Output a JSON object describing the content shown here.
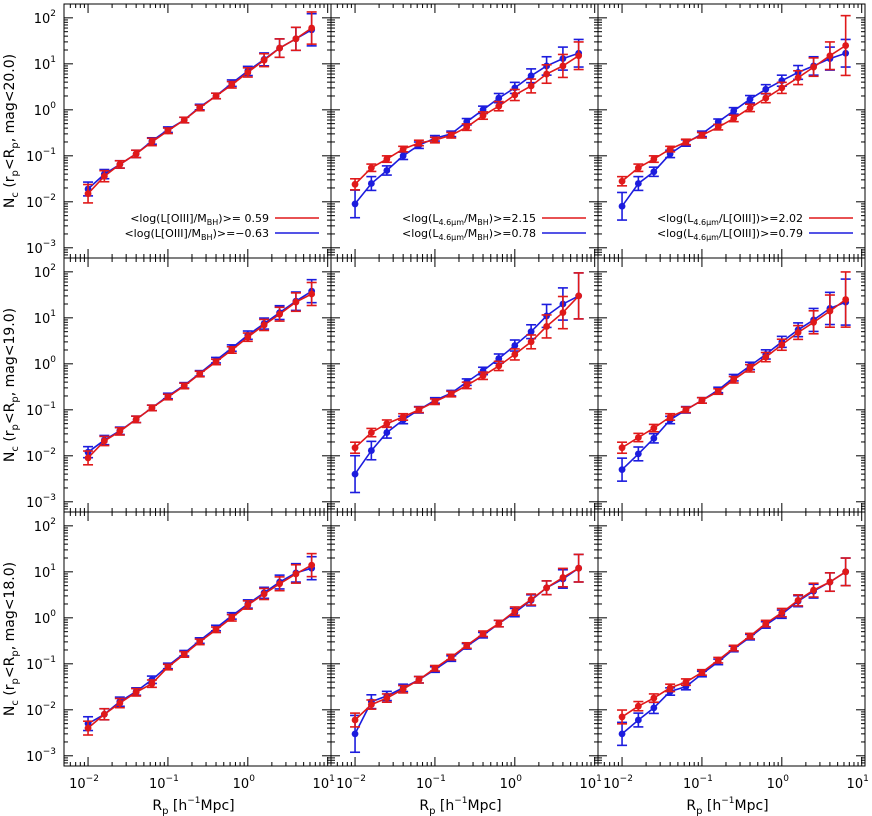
{
  "colors": {
    "red": "#e0191a",
    "blue": "#1c1cde",
    "axis": "#000000"
  },
  "x_axis": {
    "label_main": "R",
    "label_sub": "p",
    "label_rest": "[h",
    "label_sup": "−1",
    "label_end": "Mpc]",
    "tick_labels": [
      {
        "base": "10",
        "exp": "−2"
      },
      {
        "base": "10",
        "exp": "−1"
      },
      {
        "base": "10",
        "exp": "0"
      },
      {
        "base": "10",
        "exp": "1"
      }
    ],
    "range": [
      0.005,
      11
    ],
    "scale": "log"
  },
  "y_axis": {
    "tick_labels": [
      {
        "base": "10",
        "exp": "−3"
      },
      {
        "base": "10",
        "exp": "−2"
      },
      {
        "base": "10",
        "exp": "−1"
      },
      {
        "base": "10",
        "exp": "0"
      },
      {
        "base": "10",
        "exp": "1"
      },
      {
        "base": "10",
        "exp": "2"
      }
    ],
    "range": [
      0.0006,
      200
    ],
    "scale": "log",
    "row_labels": [
      {
        "n": "N",
        "nsub": "c",
        "a": "(r",
        "asub": "p",
        "b": "<R",
        "bsub": "p",
        "c": ",  mag<20.0)"
      },
      {
        "n": "N",
        "nsub": "c",
        "a": "(r",
        "asub": "p",
        "b": "<R",
        "bsub": "p",
        "c": ",  mag<19.0)"
      },
      {
        "n": "N",
        "nsub": "c",
        "a": "(r",
        "asub": "p",
        "b": "<R",
        "bsub": "p",
        "c": ",  mag<18.0)"
      }
    ]
  },
  "legends": [
    [
      {
        "pre": "<log(L[OIII]/M",
        "sub": "BH",
        "post": ")>= 0.59",
        "color": "red"
      },
      {
        "pre": "<log(L[OIII]/M",
        "sub": "BH",
        "post": ")>=−0.63",
        "color": "blue"
      }
    ],
    [
      {
        "pre": "<log(L",
        "sub": "4.6μm",
        "mid": "/M",
        "sub2": "BH",
        "post": ")>=2.15",
        "color": "red"
      },
      {
        "pre": "<log(L",
        "sub": "4.6μm",
        "mid": "/M",
        "sub2": "BH",
        "post": ")>=0.78",
        "color": "blue"
      }
    ],
    [
      {
        "pre": "<log(L",
        "sub": "4.6μm",
        "mid": "/L[OIII]",
        "sub2": "",
        "post": ")>=2.02",
        "color": "red"
      },
      {
        "pre": "<log(L",
        "sub": "4.6μm",
        "mid": "/L[OIII]",
        "sub2": "",
        "post": ")>=0.79",
        "color": "blue"
      }
    ]
  ],
  "chart_data": {
    "type": "line",
    "layout": "3x3 grid of panels, rows = magnitude limits, columns = AGN property splits",
    "x": [
      0.01,
      0.016,
      0.025,
      0.04,
      0.063,
      0.1,
      0.16,
      0.25,
      0.4,
      0.63,
      1.0,
      1.6,
      2.5,
      4.0,
      6.3
    ],
    "xlabel": "R_p [h^-1 Mpc]",
    "panels": [
      {
        "row": 0,
        "col": 0,
        "red": {
          "y": [
            0.015,
            0.036,
            0.065,
            0.11,
            0.2,
            0.35,
            0.6,
            1.1,
            2.0,
            3.5,
            6.5,
            12,
            22,
            35,
            60
          ],
          "err": [
            0.2,
            0.12,
            0.08,
            0.08,
            0.08,
            0.06,
            0.06,
            0.06,
            0.06,
            0.07,
            0.1,
            0.14,
            0.2,
            0.25,
            0.35
          ]
        },
        "blue": {
          "y": [
            0.019,
            0.04,
            0.065,
            0.11,
            0.21,
            0.37,
            0.6,
            1.15,
            2.0,
            3.8,
            7.0,
            12.5,
            22,
            35,
            55
          ],
          "err": [
            0.15,
            0.1,
            0.08,
            0.08,
            0.07,
            0.06,
            0.06,
            0.06,
            0.06,
            0.07,
            0.1,
            0.14,
            0.2,
            0.25,
            0.35
          ]
        }
      },
      {
        "row": 0,
        "col": 1,
        "red": {
          "y": [
            0.024,
            0.055,
            0.085,
            0.14,
            0.19,
            0.22,
            0.28,
            0.42,
            0.75,
            1.2,
            2.1,
            3.3,
            6.0,
            9.0,
            15
          ],
          "err": [
            0.12,
            0.08,
            0.07,
            0.06,
            0.06,
            0.06,
            0.06,
            0.07,
            0.08,
            0.1,
            0.12,
            0.15,
            0.2,
            0.25,
            0.3
          ]
        },
        "blue": {
          "y": [
            0.009,
            0.025,
            0.048,
            0.1,
            0.17,
            0.24,
            0.3,
            0.55,
            1.0,
            1.8,
            3.0,
            5.5,
            9.0,
            13,
            17
          ],
          "err": [
            0.3,
            0.15,
            0.1,
            0.08,
            0.07,
            0.06,
            0.06,
            0.07,
            0.08,
            0.1,
            0.12,
            0.15,
            0.2,
            0.25,
            0.3
          ]
        }
      },
      {
        "row": 0,
        "col": 2,
        "red": {
          "y": [
            0.028,
            0.055,
            0.085,
            0.14,
            0.2,
            0.28,
            0.42,
            0.65,
            1.1,
            1.8,
            3.0,
            5.0,
            8.5,
            15,
            25
          ],
          "err": [
            0.1,
            0.08,
            0.07,
            0.06,
            0.06,
            0.06,
            0.06,
            0.07,
            0.08,
            0.1,
            0.12,
            0.15,
            0.2,
            0.3,
            0.65
          ]
        },
        "blue": {
          "y": [
            0.008,
            0.025,
            0.045,
            0.11,
            0.19,
            0.3,
            0.55,
            0.95,
            1.7,
            2.8,
            4.3,
            6.5,
            9.0,
            13,
            17
          ],
          "err": [
            0.3,
            0.15,
            0.1,
            0.08,
            0.07,
            0.06,
            0.06,
            0.07,
            0.08,
            0.1,
            0.12,
            0.15,
            0.2,
            0.25,
            0.3
          ]
        }
      },
      {
        "row": 1,
        "col": 0,
        "red": {
          "y": [
            0.009,
            0.021,
            0.034,
            0.062,
            0.11,
            0.19,
            0.33,
            0.6,
            1.1,
            2.0,
            3.8,
            7.0,
            12,
            22,
            33
          ],
          "err": [
            0.15,
            0.1,
            0.08,
            0.07,
            0.06,
            0.06,
            0.06,
            0.06,
            0.06,
            0.07,
            0.09,
            0.12,
            0.15,
            0.2,
            0.25
          ]
        },
        "blue": {
          "y": [
            0.012,
            0.022,
            0.035,
            0.062,
            0.11,
            0.2,
            0.34,
            0.62,
            1.2,
            2.2,
            4.2,
            7.5,
            13,
            23,
            38
          ],
          "err": [
            0.12,
            0.1,
            0.08,
            0.07,
            0.06,
            0.06,
            0.06,
            0.06,
            0.06,
            0.07,
            0.09,
            0.12,
            0.15,
            0.2,
            0.25
          ]
        }
      },
      {
        "row": 1,
        "col": 1,
        "red": {
          "y": [
            0.015,
            0.032,
            0.05,
            0.07,
            0.1,
            0.15,
            0.22,
            0.34,
            0.55,
            0.9,
            1.6,
            3.0,
            6.5,
            13,
            30
          ],
          "err": [
            0.12,
            0.09,
            0.08,
            0.07,
            0.06,
            0.06,
            0.06,
            0.07,
            0.08,
            0.1,
            0.12,
            0.15,
            0.25,
            0.35,
            0.5
          ]
        },
        "blue": {
          "y": [
            0.004,
            0.013,
            0.032,
            0.06,
            0.1,
            0.16,
            0.23,
            0.4,
            0.7,
            1.3,
            2.5,
            5.0,
            11,
            20,
            30
          ],
          "err": [
            0.4,
            0.2,
            0.12,
            0.08,
            0.07,
            0.06,
            0.06,
            0.07,
            0.08,
            0.1,
            0.12,
            0.15,
            0.25,
            0.35,
            0.5
          ]
        }
      },
      {
        "row": 1,
        "col": 2,
        "red": {
          "y": [
            0.015,
            0.025,
            0.04,
            0.07,
            0.1,
            0.16,
            0.25,
            0.45,
            0.8,
            1.4,
            2.6,
            4.8,
            8.0,
            14,
            25
          ],
          "err": [
            0.12,
            0.09,
            0.08,
            0.07,
            0.06,
            0.06,
            0.06,
            0.07,
            0.08,
            0.1,
            0.12,
            0.15,
            0.25,
            0.35,
            0.6
          ]
        },
        "blue": {
          "y": [
            0.005,
            0.011,
            0.024,
            0.06,
            0.1,
            0.16,
            0.27,
            0.5,
            0.9,
            1.6,
            3.0,
            5.5,
            9.0,
            16,
            22
          ],
          "err": [
            0.25,
            0.15,
            0.1,
            0.08,
            0.07,
            0.06,
            0.06,
            0.07,
            0.08,
            0.1,
            0.12,
            0.15,
            0.25,
            0.35,
            0.5
          ]
        }
      },
      {
        "row": 2,
        "col": 0,
        "red": {
          "y": [
            0.004,
            0.008,
            0.014,
            0.024,
            0.037,
            0.085,
            0.16,
            0.3,
            0.55,
            1.0,
            1.9,
            3.3,
            5.5,
            9.0,
            14
          ],
          "err": [
            0.15,
            0.12,
            0.1,
            0.08,
            0.08,
            0.06,
            0.06,
            0.06,
            0.06,
            0.07,
            0.09,
            0.12,
            0.15,
            0.2,
            0.25
          ]
        },
        "blue": {
          "y": [
            0.005,
            0.008,
            0.015,
            0.025,
            0.045,
            0.09,
            0.17,
            0.32,
            0.6,
            1.1,
            2.0,
            3.5,
            6.0,
            9.5,
            12
          ],
          "err": [
            0.15,
            0.12,
            0.1,
            0.08,
            0.08,
            0.06,
            0.06,
            0.06,
            0.06,
            0.07,
            0.09,
            0.12,
            0.15,
            0.2,
            0.25
          ]
        }
      },
      {
        "row": 2,
        "col": 1,
        "red": {
          "y": [
            0.006,
            0.013,
            0.018,
            0.028,
            0.045,
            0.08,
            0.14,
            0.25,
            0.45,
            0.75,
            1.4,
            2.5,
            4.5,
            7.5,
            12
          ],
          "err": [
            0.15,
            0.1,
            0.09,
            0.08,
            0.07,
            0.06,
            0.06,
            0.06,
            0.06,
            0.07,
            0.09,
            0.12,
            0.15,
            0.2,
            0.3
          ]
        },
        "blue": {
          "y": [
            0.003,
            0.015,
            0.02,
            0.03,
            0.045,
            0.075,
            0.13,
            0.24,
            0.42,
            0.75,
            1.3,
            2.4,
            4.5,
            7.0,
            12
          ],
          "err": [
            0.4,
            0.15,
            0.1,
            0.08,
            0.07,
            0.06,
            0.06,
            0.06,
            0.06,
            0.07,
            0.09,
            0.12,
            0.15,
            0.2,
            0.3
          ]
        }
      },
      {
        "row": 2,
        "col": 2,
        "red": {
          "y": [
            0.007,
            0.012,
            0.018,
            0.03,
            0.04,
            0.065,
            0.12,
            0.22,
            0.4,
            0.75,
            1.3,
            2.4,
            4.0,
            6.0,
            10
          ],
          "err": [
            0.15,
            0.1,
            0.09,
            0.08,
            0.07,
            0.06,
            0.06,
            0.06,
            0.06,
            0.07,
            0.09,
            0.12,
            0.15,
            0.2,
            0.3
          ]
        },
        "blue": {
          "y": [
            0.003,
            0.006,
            0.011,
            0.025,
            0.032,
            0.06,
            0.11,
            0.21,
            0.38,
            0.7,
            1.2,
            2.3,
            3.8,
            6.0,
            10
          ],
          "err": [
            0.25,
            0.15,
            0.12,
            0.08,
            0.07,
            0.06,
            0.06,
            0.06,
            0.06,
            0.07,
            0.09,
            0.12,
            0.15,
            0.2,
            0.3
          ]
        }
      }
    ]
  }
}
